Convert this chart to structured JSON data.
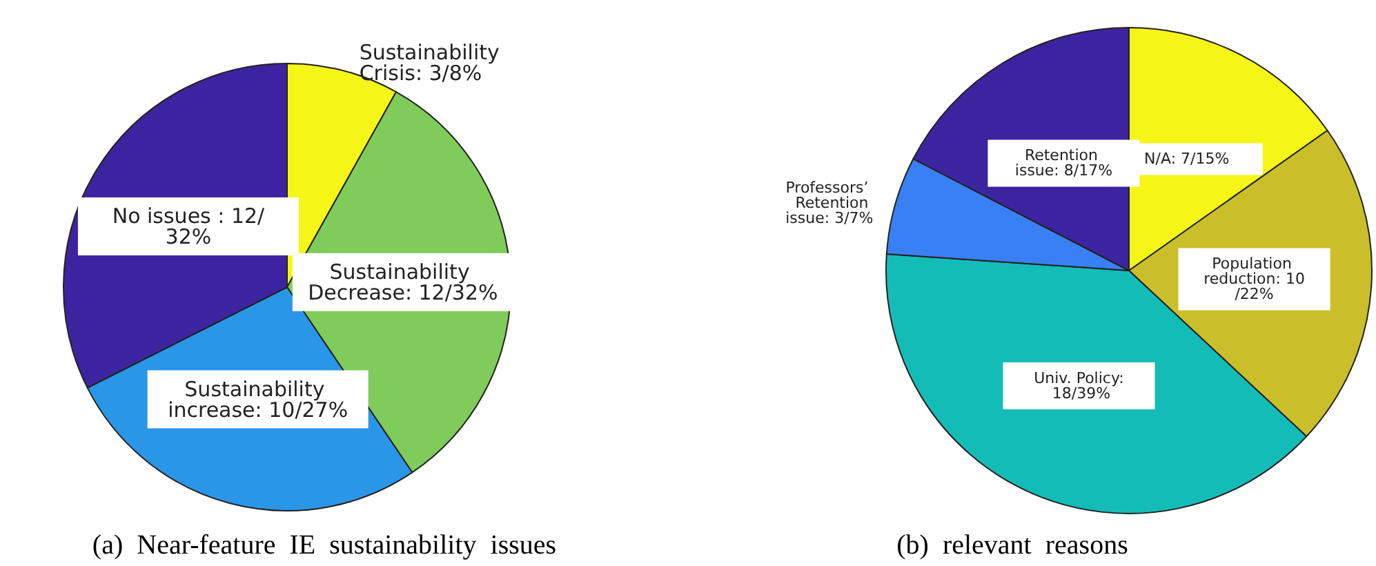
{
  "chart_data": [
    {
      "type": "pie",
      "title": "(a)  Near-feature  IE  sustainability  issues",
      "categories": [
        "Sustainability Crisis: 3/8%",
        "Sustainability Decrease: 12/32%",
        "Sustainability increase: 10/27%",
        "No issues : 12/32%"
      ],
      "values": [
        3,
        12,
        10,
        12
      ],
      "colors": [
        "#f5f518",
        "#80cc5a",
        "#2a96e8",
        "#3c24a0"
      ]
    },
    {
      "type": "pie",
      "title": "(b)  relevant  reasons",
      "categories": [
        "N/A: 7/15%",
        "Population reduction: 10/22%",
        "Univ. Policy: 18/39%",
        "Professors’ Retention issue: 3/7%",
        "Retention issue: 8/17%"
      ],
      "values": [
        7,
        10,
        18,
        3,
        8
      ],
      "colors": [
        "#f5f518",
        "#cabf2a",
        "#14bcb8",
        "#3a80f5",
        "#3c24a0"
      ]
    }
  ]
}
